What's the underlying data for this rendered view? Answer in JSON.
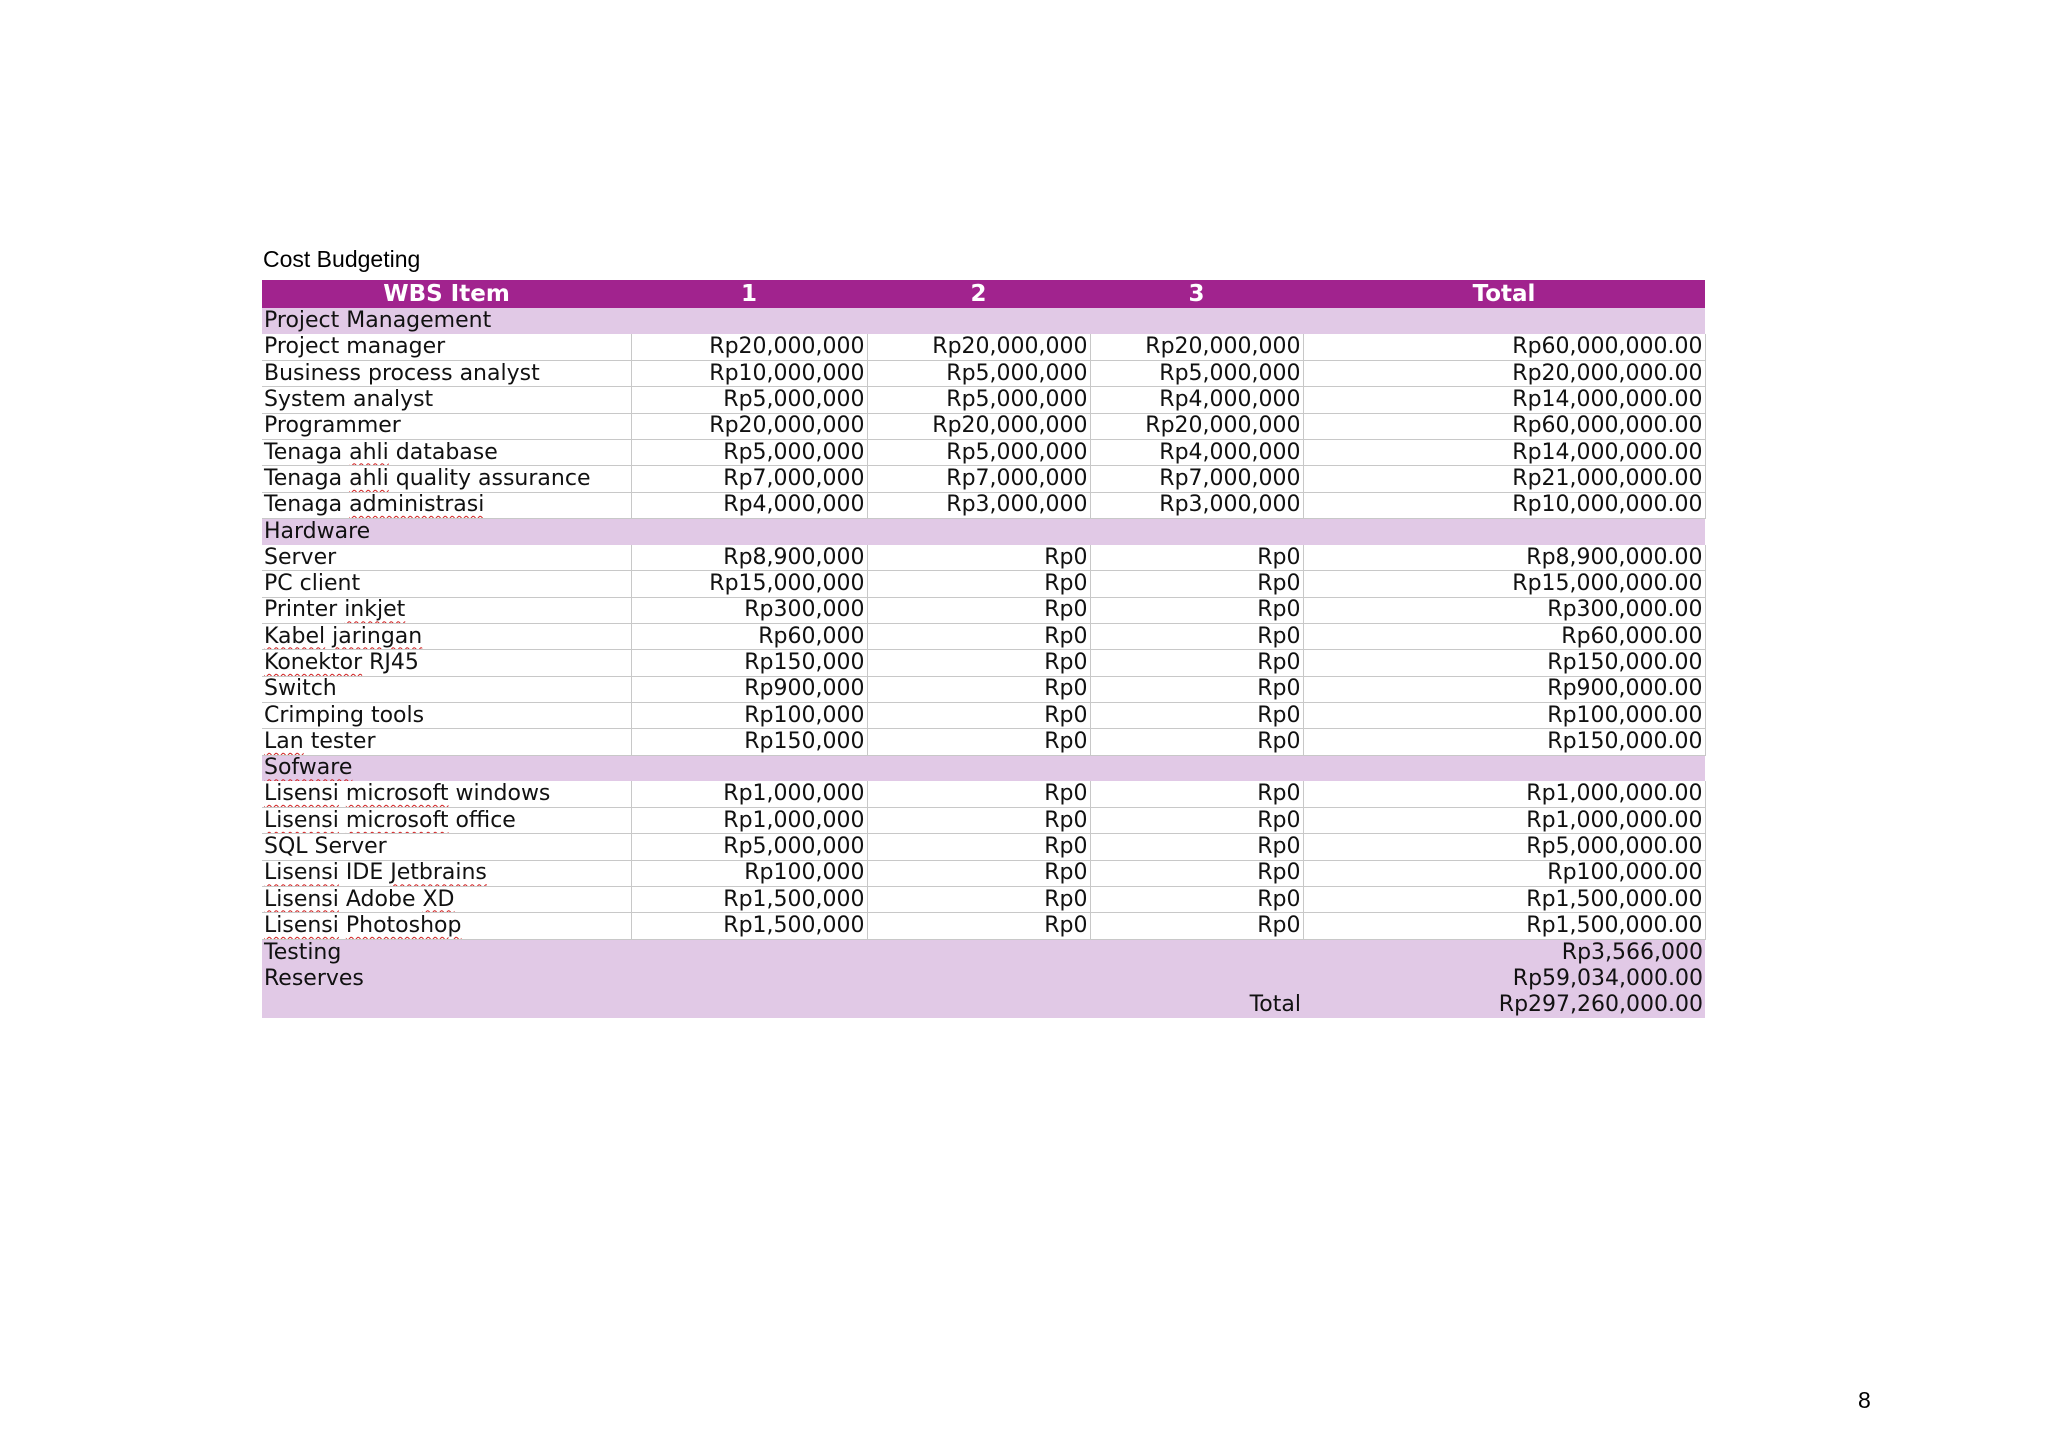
{
  "title": "Cost Budgeting",
  "page_number": "8",
  "colors": {
    "header_bg": "#a1238e",
    "section_bg": "#e1c9e6",
    "header_text": "#ffffff"
  },
  "table": {
    "headers": [
      "WBS Item",
      "1",
      "2",
      "3",
      "Total"
    ],
    "sections": [
      {
        "name": "Project Management",
        "rows": [
          [
            "Project manager",
            "Rp20,000,000",
            "Rp20,000,000",
            "Rp20,000,000",
            "Rp60,000,000.00"
          ],
          [
            "Business process analyst",
            "Rp10,000,000",
            "Rp5,000,000",
            "Rp5,000,000",
            "Rp20,000,000.00"
          ],
          [
            "System analyst",
            "Rp5,000,000",
            "Rp5,000,000",
            "Rp4,000,000",
            "Rp14,000,000.00"
          ],
          [
            "Programmer",
            "Rp20,000,000",
            "Rp20,000,000",
            "Rp20,000,000",
            "Rp60,000,000.00"
          ],
          [
            "Tenaga ahli database",
            "Rp5,000,000",
            "Rp5,000,000",
            "Rp4,000,000",
            "Rp14,000,000.00"
          ],
          [
            "Tenaga ahli quality assurance",
            "Rp7,000,000",
            "Rp7,000,000",
            "Rp7,000,000",
            "Rp21,000,000.00"
          ],
          [
            "Tenaga administrasi",
            "Rp4,000,000",
            "Rp3,000,000",
            "Rp3,000,000",
            "Rp10,000,000.00"
          ]
        ]
      },
      {
        "name": "Hardware",
        "rows": [
          [
            "Server",
            "Rp8,900,000",
            "Rp0",
            "Rp0",
            "Rp8,900,000.00"
          ],
          [
            "PC client",
            "Rp15,000,000",
            "Rp0",
            "Rp0",
            "Rp15,000,000.00"
          ],
          [
            "Printer inkjet",
            "Rp300,000",
            "Rp0",
            "Rp0",
            "Rp300,000.00"
          ],
          [
            "Kabel jaringan",
            "Rp60,000",
            "Rp0",
            "Rp0",
            "Rp60,000.00"
          ],
          [
            "Konektor RJ45",
            "Rp150,000",
            "Rp0",
            "Rp0",
            "Rp150,000.00"
          ],
          [
            "Switch",
            "Rp900,000",
            "Rp0",
            "Rp0",
            "Rp900,000.00"
          ],
          [
            "Crimping tools",
            "Rp100,000",
            "Rp0",
            "Rp0",
            "Rp100,000.00"
          ],
          [
            "Lan tester",
            "Rp150,000",
            "Rp0",
            "Rp0",
            "Rp150,000.00"
          ]
        ]
      },
      {
        "name": "Sofware",
        "rows": [
          [
            "Lisensi microsoft windows",
            "Rp1,000,000",
            "Rp0",
            "Rp0",
            "Rp1,000,000.00"
          ],
          [
            "Lisensi microsoft office",
            "Rp1,000,000",
            "Rp0",
            "Rp0",
            "Rp1,000,000.00"
          ],
          [
            "SQL Server",
            "Rp5,000,000",
            "Rp0",
            "Rp0",
            "Rp5,000,000.00"
          ],
          [
            "Lisensi IDE Jetbrains",
            "Rp100,000",
            "Rp0",
            "Rp0",
            "Rp100,000.00"
          ],
          [
            "Lisensi Adobe XD",
            "Rp1,500,000",
            "Rp0",
            "Rp0",
            "Rp1,500,000.00"
          ],
          [
            "Lisensi Photoshop",
            "Rp1,500,000",
            "Rp0",
            "Rp0",
            "Rp1,500,000.00"
          ]
        ]
      }
    ],
    "testing": {
      "label": "Testing",
      "value": "Rp3,566,000"
    },
    "reserves": {
      "label": "Reserves",
      "value": "Rp59,034,000.00"
    },
    "grand_total": {
      "label": "Total",
      "value": "Rp297,260,000.00"
    }
  }
}
